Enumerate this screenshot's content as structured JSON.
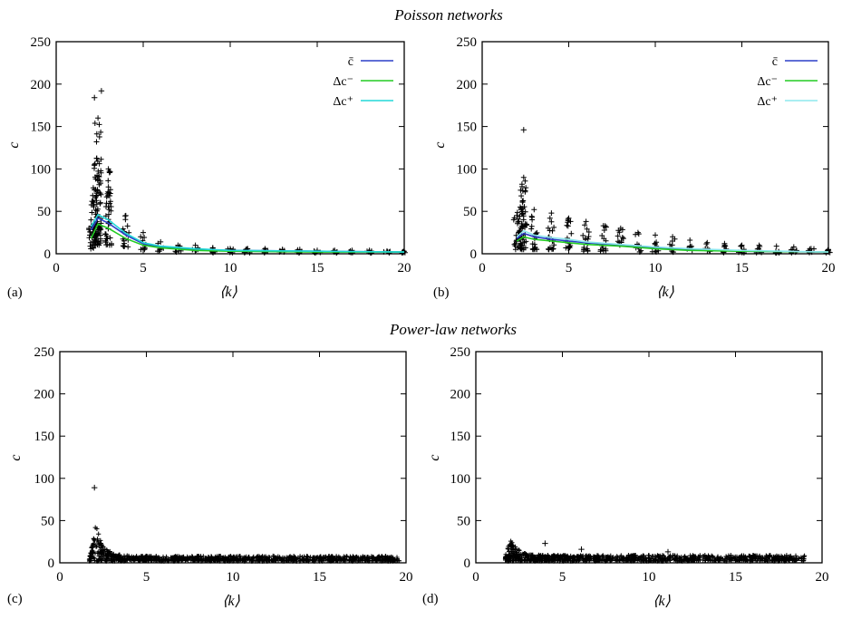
{
  "sections": {
    "top": "Poisson networks",
    "bottom": "Power-law networks"
  },
  "chart_data": [
    {
      "type": "scatter",
      "panel": "(a)",
      "group": "Poisson networks",
      "xlabel": "⟨k⟩",
      "ylabel": "c",
      "xlim": [
        0,
        20
      ],
      "ylim": [
        0,
        250
      ],
      "xticks": [
        0,
        5,
        10,
        15,
        20
      ],
      "yticks": [
        0,
        50,
        100,
        150,
        200,
        250
      ],
      "legend_position": "top-right",
      "scatter_groups": [
        {
          "x": 2.0,
          "min": 5,
          "max": 40
        },
        {
          "x": 2.2,
          "min": 10,
          "max": 105
        },
        {
          "x": 2.4,
          "min": 10,
          "max": 160
        },
        {
          "x": 3.0,
          "min": 10,
          "max": 100
        },
        {
          "x": 4.0,
          "min": 8,
          "max": 45
        },
        {
          "x": 5.0,
          "min": 5,
          "max": 25
        },
        {
          "x": 6.0,
          "min": 3,
          "max": 14
        },
        {
          "x": 7.0,
          "min": 2,
          "max": 10
        },
        {
          "x": 8.0,
          "min": 2,
          "max": 10
        },
        {
          "x": 9.0,
          "min": 1,
          "max": 7
        },
        {
          "x": 10.0,
          "min": 1,
          "max": 6
        },
        {
          "x": 11.0,
          "min": 1,
          "max": 6
        },
        {
          "x": 12.0,
          "min": 1,
          "max": 6
        },
        {
          "x": 13.0,
          "min": 1,
          "max": 5
        },
        {
          "x": 14.0,
          "min": 1,
          "max": 5
        },
        {
          "x": 15.0,
          "min": 1,
          "max": 4
        },
        {
          "x": 16.0,
          "min": 1,
          "max": 4
        },
        {
          "x": 17.0,
          "min": 1,
          "max": 4
        },
        {
          "x": 18.0,
          "min": 1,
          "max": 4
        },
        {
          "x": 19.0,
          "min": 1,
          "max": 3
        },
        {
          "x": 20.0,
          "min": 1,
          "max": 3
        }
      ],
      "outliers": [
        {
          "x": 2.2,
          "y": 184
        },
        {
          "x": 2.6,
          "y": 192
        }
      ],
      "series": [
        {
          "name": "c̄",
          "color": "#2b3fc8",
          "x": [
            2,
            2.4,
            3,
            4,
            5,
            6,
            8,
            10,
            15,
            20
          ],
          "y": [
            28,
            42,
            36,
            22,
            12,
            8,
            5,
            4,
            3,
            2
          ]
        },
        {
          "name": "Δc⁻",
          "color": "#22cc22",
          "x": [
            2,
            2.4,
            3,
            4,
            5,
            6,
            8,
            10,
            15,
            20
          ],
          "y": [
            18,
            35,
            30,
            18,
            10,
            7,
            4,
            3,
            2,
            2
          ]
        },
        {
          "name": "Δc⁺",
          "color": "#22d8d8",
          "x": [
            2,
            2.4,
            3,
            4,
            5,
            6,
            8,
            10,
            15,
            20
          ],
          "y": [
            32,
            46,
            40,
            24,
            13,
            9,
            6,
            4,
            3,
            2
          ]
        }
      ]
    },
    {
      "type": "scatter",
      "panel": "(b)",
      "group": "Poisson networks",
      "xlabel": "⟨k⟩",
      "ylabel": "c",
      "xlim": [
        0,
        20
      ],
      "ylim": [
        0,
        250
      ],
      "xticks": [
        0,
        5,
        10,
        15,
        20
      ],
      "yticks": [
        0,
        50,
        100,
        150,
        200,
        250
      ],
      "legend_position": "top-right",
      "scatter_groups": [
        {
          "x": 2.0,
          "min": 5,
          "max": 45
        },
        {
          "x": 2.2,
          "min": 5,
          "max": 55
        },
        {
          "x": 2.4,
          "min": 5,
          "max": 90
        },
        {
          "x": 3.0,
          "min": 5,
          "max": 52
        },
        {
          "x": 4.0,
          "min": 5,
          "max": 48
        },
        {
          "x": 5.0,
          "min": 5,
          "max": 42
        },
        {
          "x": 6.0,
          "min": 3,
          "max": 38
        },
        {
          "x": 7.0,
          "min": 3,
          "max": 33
        },
        {
          "x": 8.0,
          "min": 3,
          "max": 30
        },
        {
          "x": 9.0,
          "min": 2,
          "max": 25
        },
        {
          "x": 10.0,
          "min": 2,
          "max": 22
        },
        {
          "x": 11.0,
          "min": 2,
          "max": 20
        },
        {
          "x": 12.0,
          "min": 2,
          "max": 16
        },
        {
          "x": 13.0,
          "min": 2,
          "max": 13
        },
        {
          "x": 14.0,
          "min": 1,
          "max": 12
        },
        {
          "x": 15.0,
          "min": 1,
          "max": 10
        },
        {
          "x": 16.0,
          "min": 1,
          "max": 10
        },
        {
          "x": 17.0,
          "min": 1,
          "max": 9
        },
        {
          "x": 18.0,
          "min": 1,
          "max": 8
        },
        {
          "x": 19.0,
          "min": 1,
          "max": 6
        },
        {
          "x": 20.0,
          "min": 1,
          "max": 5
        }
      ],
      "outliers": [
        {
          "x": 2.4,
          "y": 146
        }
      ],
      "series": [
        {
          "name": "c̄",
          "color": "#2b3fc8",
          "x": [
            2,
            2.4,
            3,
            4,
            5,
            6,
            8,
            10,
            12,
            15,
            20
          ],
          "y": [
            18,
            24,
            20,
            17,
            15,
            13,
            10,
            7,
            5,
            3,
            2
          ]
        },
        {
          "name": "Δc⁻",
          "color": "#22cc22",
          "x": [
            2,
            2.4,
            3,
            4,
            5,
            6,
            8,
            10,
            12,
            15,
            20
          ],
          "y": [
            15,
            20,
            17,
            15,
            13,
            11,
            9,
            6,
            4,
            3,
            2
          ]
        },
        {
          "name": "Δc⁺",
          "color": "#8ee8ee",
          "x": [
            2,
            2.4,
            3,
            4,
            5,
            6,
            8,
            10,
            12,
            15,
            20
          ],
          "y": [
            20,
            27,
            22,
            19,
            17,
            14,
            11,
            8,
            6,
            4,
            2
          ]
        }
      ]
    },
    {
      "type": "scatter",
      "panel": "(c)",
      "group": "Power-law networks",
      "xlabel": "⟨k⟩",
      "ylabel": "c",
      "xlim": [
        0,
        20
      ],
      "ylim": [
        0,
        250
      ],
      "xticks": [
        0,
        5,
        10,
        15,
        20
      ],
      "yticks": [
        0,
        50,
        100,
        150,
        200,
        250
      ],
      "band": {
        "x_start": 1.7,
        "x_end": 19.6,
        "peak_x": 2.1,
        "peak_max": 47,
        "tail_max": 8,
        "tail_min": 2
      },
      "outliers": [
        {
          "x": 2.0,
          "y": 89
        }
      ]
    },
    {
      "type": "scatter",
      "panel": "(d)",
      "group": "Power-law networks",
      "xlabel": "⟨k⟩",
      "ylabel": "c",
      "xlim": [
        0,
        20
      ],
      "ylim": [
        0,
        250
      ],
      "xticks": [
        0,
        5,
        10,
        15,
        20
      ],
      "yticks": [
        0,
        50,
        100,
        150,
        200,
        250
      ],
      "band": {
        "x_start": 1.7,
        "x_end": 19.0,
        "peak_x": 2.0,
        "peak_max": 30,
        "tail_max": 9,
        "tail_min": 2
      },
      "outliers": [
        {
          "x": 4.0,
          "y": 23
        },
        {
          "x": 6.1,
          "y": 16
        },
        {
          "x": 11.1,
          "y": 13
        }
      ]
    }
  ]
}
